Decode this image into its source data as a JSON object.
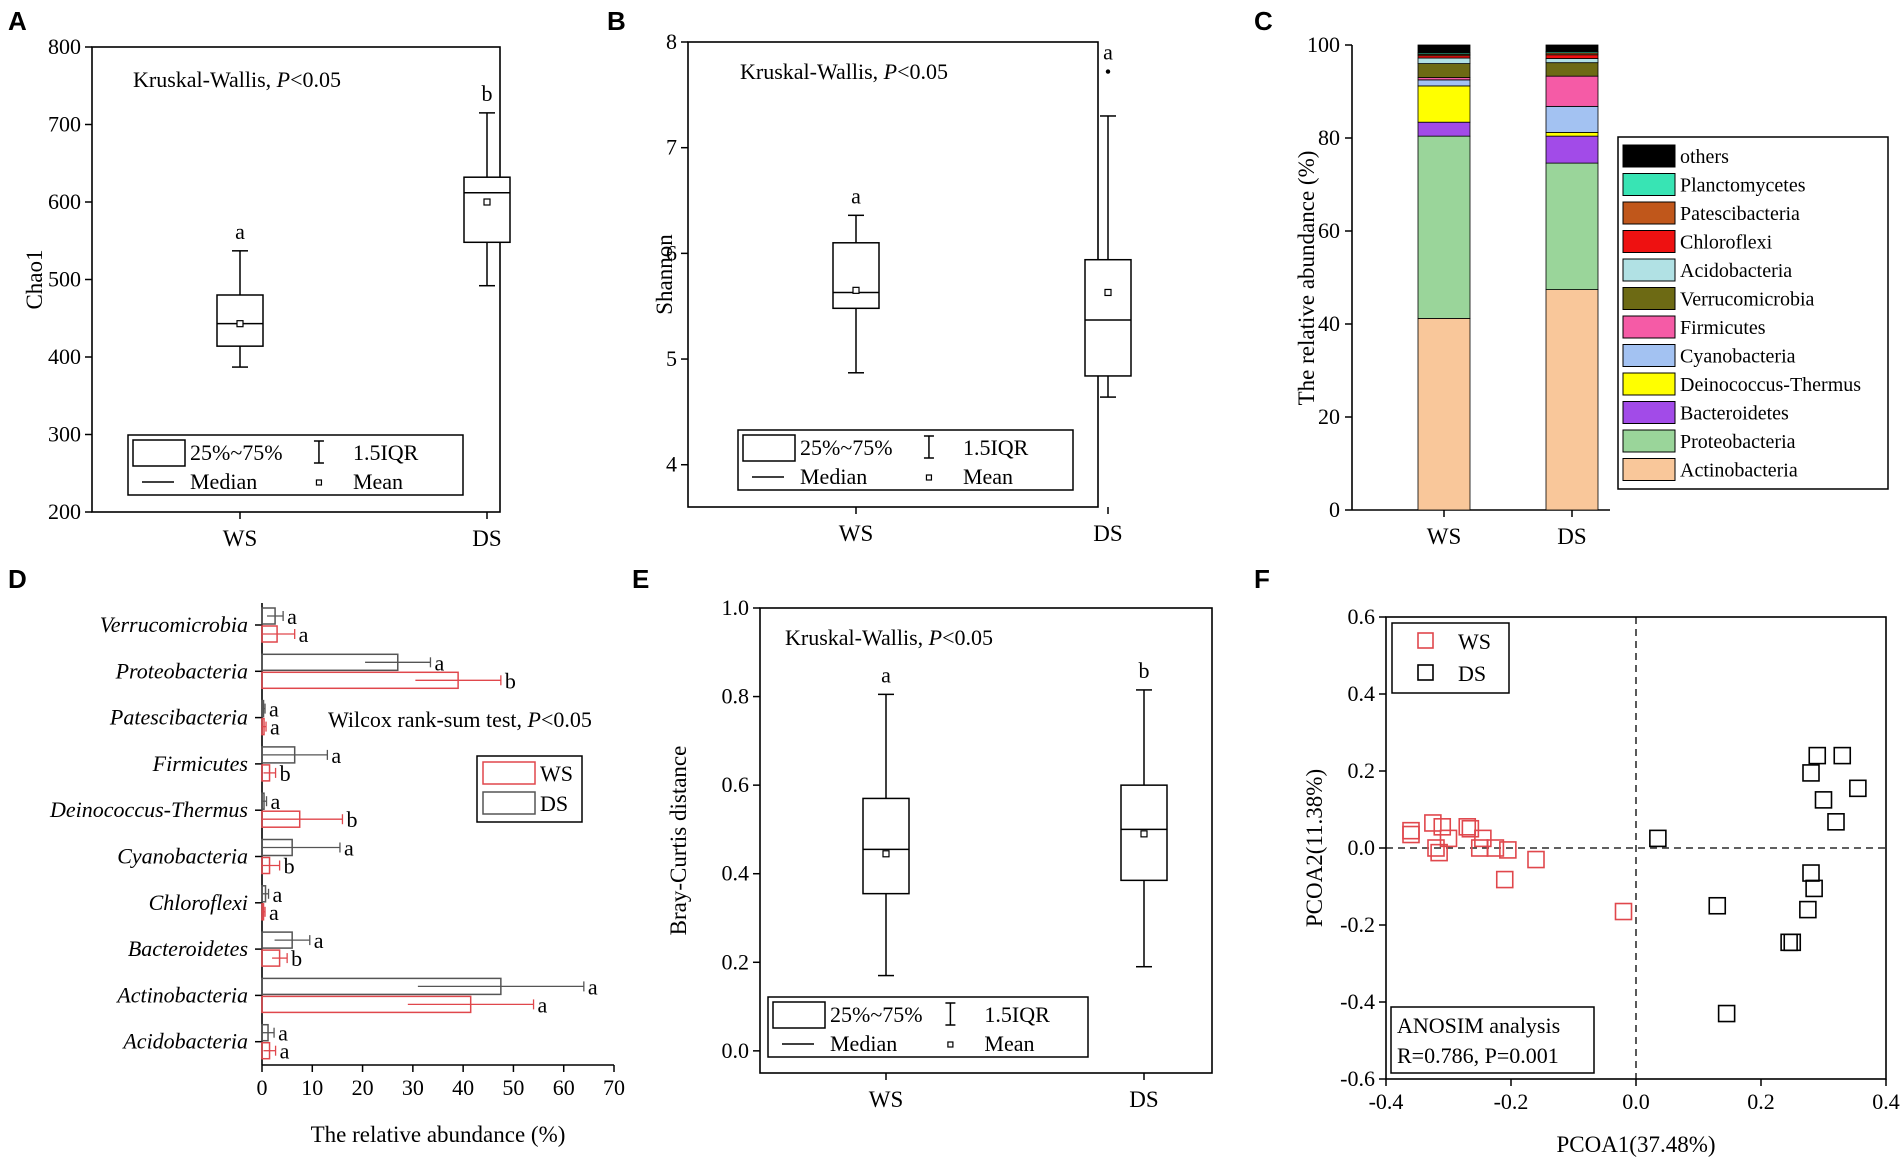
{
  "chart_data": [
    {
      "panel": "A",
      "type": "box",
      "ylabel": "Chao1",
      "ylim": [
        200,
        800
      ],
      "yticks": [
        200,
        300,
        400,
        500,
        600,
        700,
        800
      ],
      "test_label": "Kruskal-Wallis, ",
      "test_p": "P",
      "test_p_rest": "<0.05",
      "groups": [
        {
          "name": "WS",
          "whisker_low": 387,
          "q1": 414,
          "median": 443,
          "q3": 480,
          "whisker_high": 537,
          "mean": 443,
          "letter": "a"
        },
        {
          "name": "DS",
          "whisker_low": 492,
          "q1": 548,
          "median": 612,
          "q3": 632,
          "whisker_high": 715,
          "mean": 600,
          "letter": "b"
        }
      ],
      "legend": {
        "box": "25%~75%",
        "whisker": "1.5IQR",
        "median": "Median",
        "mean": "Mean"
      }
    },
    {
      "panel": "B",
      "type": "box",
      "ylabel": "Shannon",
      "ylim": [
        3.6,
        8
      ],
      "yticks": [
        4,
        5,
        6,
        7,
        8
      ],
      "test_label": "Kruskal-Wallis, ",
      "test_p": "P",
      "test_p_rest": "<0.05",
      "groups": [
        {
          "name": "WS",
          "whisker_low": 4.87,
          "q1": 5.48,
          "median": 5.63,
          "q3": 6.1,
          "whisker_high": 6.36,
          "mean": 5.65,
          "letter": "a"
        },
        {
          "name": "DS",
          "whisker_low": 4.64,
          "q1": 4.84,
          "median": 5.37,
          "q3": 5.94,
          "whisker_high": 7.3,
          "mean": 5.63,
          "outlier": 7.72,
          "letter": "a"
        }
      ],
      "legend": {
        "box": "25%~75%",
        "whisker": "1.5IQR",
        "median": "Median",
        "mean": "Mean"
      }
    },
    {
      "panel": "C",
      "type": "stacked-bar",
      "ylabel": "The relative abundance (%)",
      "ylim": [
        0,
        100
      ],
      "yticks": [
        0,
        20,
        40,
        60,
        80,
        100
      ],
      "categories": [
        "WS",
        "DS"
      ],
      "series": [
        {
          "name": "Actinobacteria",
          "color": "#F9C79A",
          "values": [
            41.2,
            47.4
          ]
        },
        {
          "name": "Proteobacteria",
          "color": "#9AD59A",
          "values": [
            39.2,
            27.2
          ]
        },
        {
          "name": "Bacteroidetes",
          "color": "#A24BE8",
          "values": [
            3.0,
            5.8
          ]
        },
        {
          "name": "Deinococcus-Thermus",
          "color": "#FFFF00",
          "values": [
            7.8,
            0.8
          ]
        },
        {
          "name": "Cyanobacteria",
          "color": "#A3C2F2",
          "values": [
            1.3,
            5.6
          ]
        },
        {
          "name": "Firmicutes",
          "color": "#F55BA6",
          "values": [
            0.5,
            6.5
          ]
        },
        {
          "name": "Verrucomicrobia",
          "color": "#6D6A14",
          "values": [
            3.0,
            2.9
          ]
        },
        {
          "name": "Acidobacteria",
          "color": "#B1E1E4",
          "values": [
            1.2,
            0.9
          ]
        },
        {
          "name": "Chloroflexi",
          "color": "#EE1111",
          "values": [
            0.5,
            0.8
          ]
        },
        {
          "name": "Patescibacteria",
          "color": "#C0571B",
          "values": [
            0.3,
            0.4
          ]
        },
        {
          "name": "Planctomycetes",
          "color": "#38E4B4",
          "values": [
            0.3,
            0.3
          ]
        },
        {
          "name": "others",
          "color": "#000000",
          "values": [
            1.7,
            1.4
          ]
        }
      ]
    },
    {
      "panel": "D",
      "type": "horizontal-bar",
      "xlabel": "The relative abundance (%)",
      "xlim": [
        0,
        70
      ],
      "xticks": [
        0,
        10,
        20,
        30,
        40,
        50,
        60,
        70
      ],
      "test_label": "Wilcox rank-sum test, ",
      "test_p": "P",
      "test_p_rest": "<0.05",
      "categories": [
        "Verrucomicrobia",
        "Proteobacteria",
        "Patescibacteria",
        "Firmicutes",
        "Deinococcus-Thermus",
        "Cyanobacteria",
        "Chloroflexi",
        "Bacteroidetes",
        "Actinobacteria",
        "Acidobacteria"
      ],
      "series": [
        {
          "name": "DS",
          "color": "#555555",
          "values": [
            2.6,
            27,
            0.3,
            6.5,
            0.4,
            6,
            0.7,
            6,
            47.5,
            1.2
          ],
          "errors": [
            1.6,
            6.5,
            0.3,
            6.5,
            0.5,
            9.5,
            0.6,
            3.5,
            16.5,
            1.2
          ],
          "letters": [
            "a",
            "a",
            "a",
            "a",
            "a",
            "a",
            "a",
            "a",
            "a",
            "a"
          ]
        },
        {
          "name": "WS",
          "color": "#E0474C",
          "values": [
            3.0,
            39,
            0.4,
            1.5,
            7.5,
            1.5,
            0.3,
            3.5,
            41.5,
            1.5
          ],
          "errors": [
            3.5,
            8.5,
            0.4,
            1.2,
            8.5,
            2.0,
            0.3,
            1.5,
            12.5,
            1.2
          ],
          "letters": [
            "a",
            "b",
            "a",
            "b",
            "b",
            "b",
            "a",
            "b",
            "a",
            "a"
          ]
        }
      ]
    },
    {
      "panel": "E",
      "type": "box",
      "ylabel": "Bray-Curtis distance",
      "ylim": [
        -0.05,
        1.0
      ],
      "yticks": [
        0.0,
        0.2,
        0.4,
        0.6,
        0.8,
        1.0
      ],
      "test_label": "Kruskal-Wallis, ",
      "test_p": "P",
      "test_p_rest": "<0.05",
      "groups": [
        {
          "name": "WS",
          "whisker_low": 0.17,
          "q1": 0.355,
          "median": 0.455,
          "q3": 0.57,
          "whisker_high": 0.805,
          "mean": 0.445,
          "letter": "a"
        },
        {
          "name": "DS",
          "whisker_low": 0.19,
          "q1": 0.385,
          "median": 0.5,
          "q3": 0.6,
          "whisker_high": 0.815,
          "mean": 0.49,
          "letter": "b"
        }
      ],
      "legend": {
        "box": "25%~75%",
        "whisker": "1.5IQR",
        "median": "Median",
        "mean": "Mean"
      }
    },
    {
      "panel": "F",
      "type": "scatter",
      "xlabel": "PCOA1(37.48%)",
      "ylabel": "PCOA2(11.38%)",
      "xlim": [
        -0.4,
        0.4
      ],
      "ylim": [
        -0.6,
        0.6
      ],
      "xticks": [
        -0.4,
        -0.2,
        0.0,
        0.2,
        0.4
      ],
      "yticks": [
        -0.6,
        -0.4,
        -0.2,
        0.0,
        0.2,
        0.4,
        0.6
      ],
      "annotation": [
        "ANOSIM analysis",
        "R=0.786, P=0.001"
      ],
      "series": [
        {
          "name": "WS",
          "color": "#E0474C",
          "points": [
            [
              -0.36,
              0.035
            ],
            [
              -0.36,
              0.045
            ],
            [
              -0.325,
              0.065
            ],
            [
              -0.31,
              0.055
            ],
            [
              -0.32,
              0.0
            ],
            [
              -0.315,
              -0.012
            ],
            [
              -0.3,
              0.025
            ],
            [
              -0.27,
              0.055
            ],
            [
              -0.265,
              0.05
            ],
            [
              -0.245,
              0.025
            ],
            [
              -0.25,
              0.0
            ],
            [
              -0.225,
              0.0
            ],
            [
              -0.205,
              -0.005
            ],
            [
              -0.21,
              -0.082
            ],
            [
              -0.16,
              -0.03
            ],
            [
              -0.02,
              -0.165
            ]
          ]
        },
        {
          "name": "DS",
          "color": "#000000",
          "points": [
            [
              0.035,
              0.025
            ],
            [
              0.28,
              0.195
            ],
            [
              0.29,
              0.24
            ],
            [
              0.33,
              0.24
            ],
            [
              0.3,
              0.125
            ],
            [
              0.355,
              0.155
            ],
            [
              0.32,
              0.068
            ],
            [
              0.28,
              -0.065
            ],
            [
              0.285,
              -0.105
            ],
            [
              0.275,
              -0.16
            ],
            [
              0.13,
              -0.15
            ],
            [
              0.25,
              -0.245
            ],
            [
              0.245,
              -0.245
            ],
            [
              0.145,
              -0.43
            ]
          ]
        }
      ]
    }
  ]
}
